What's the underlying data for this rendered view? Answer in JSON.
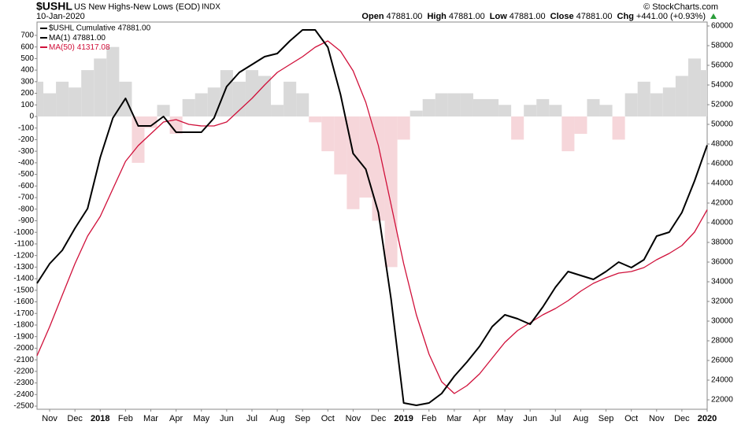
{
  "chart_data": {
    "type": "line",
    "symbol": "$USHL",
    "title": "US New Highs-New Lows (EOD)",
    "exchange": "INDX",
    "date": "10-Jan-2020",
    "quote": [
      {
        "label": "Open",
        "value": "47881.00"
      },
      {
        "label": "High",
        "value": "47881.00"
      },
      {
        "label": "Low",
        "value": "47881.00"
      },
      {
        "label": "Close",
        "value": "47881.00"
      },
      {
        "label": "Chg",
        "value": "+441.00 (+0.93%)"
      }
    ],
    "credit": "© StockCharts.com",
    "legend_heading": "$USHL Cumulative 47881.00",
    "categories": [
      null,
      "Nov",
      null,
      "Dec",
      null,
      "2018",
      null,
      "Feb",
      null,
      "Mar",
      null,
      "Apr",
      null,
      "May",
      null,
      "Jun",
      null,
      "Jul",
      null,
      "Aug",
      null,
      "Sep",
      null,
      "Oct",
      null,
      "Nov",
      null,
      "Dec",
      null,
      "2019",
      null,
      "Feb",
      null,
      "Mar",
      null,
      "Apr",
      null,
      "May",
      null,
      "Jun",
      null,
      "Jul",
      null,
      "Aug",
      null,
      "Sep",
      null,
      "Oct",
      null,
      "Nov",
      null,
      "Dec",
      null,
      "2020"
    ],
    "histogram": {
      "positive_color": "#d9d9d9",
      "negative_color": "#f6d6da",
      "values": [
        300,
        200,
        300,
        250,
        400,
        500,
        600,
        300,
        -400,
        -100,
        100,
        -150,
        150,
        200,
        250,
        400,
        300,
        400,
        350,
        100,
        300,
        200,
        -50,
        -300,
        -500,
        -800,
        -700,
        -900,
        -1300,
        -200,
        50,
        150,
        200,
        200,
        200,
        150,
        150,
        100,
        -200,
        100,
        150,
        100,
        -300,
        -150,
        150,
        100,
        -200,
        200,
        300,
        200,
        250,
        350,
        500,
        400
      ]
    },
    "series": [
      {
        "name": "MA(1)",
        "legend_value": "47881.00",
        "color": "#000000",
        "axis": "y2",
        "values": [
          33840,
          35840,
          37200,
          39440,
          41440,
          46640,
          50640,
          52640,
          49840,
          49840,
          50800,
          49200,
          49200,
          49200,
          50640,
          53840,
          55280,
          56080,
          56880,
          57200,
          58480,
          59600,
          59600,
          57840,
          53040,
          47040,
          45440,
          41040,
          32240,
          21680,
          21440,
          21680,
          22640,
          24400,
          25840,
          27440,
          29440,
          30640,
          30240,
          29680,
          31440,
          33440,
          35040,
          34640,
          34240,
          35040,
          36000,
          35440,
          36240,
          38640,
          39040,
          41040,
          44240,
          47881
        ]
      },
      {
        "name": "MA(50)",
        "legend_value": "41317.08",
        "color": "#d0103a",
        "axis": "y2",
        "values": [
          26480,
          29440,
          32640,
          35840,
          38640,
          40640,
          43440,
          46240,
          47840,
          49040,
          50240,
          50480,
          50000,
          49840,
          49840,
          50240,
          51440,
          52640,
          54000,
          55280,
          56080,
          56880,
          57840,
          58480,
          57440,
          55440,
          52240,
          47840,
          41840,
          35840,
          30640,
          26640,
          23840,
          22640,
          23440,
          24640,
          26240,
          27840,
          29040,
          29840,
          30640,
          31280,
          32080,
          33040,
          33840,
          34400,
          34880,
          35040,
          35440,
          36240,
          36880,
          37680,
          39040,
          41317
        ]
      }
    ],
    "ylim": [
      -2527,
      815
    ],
    "yticks": [
      700,
      600,
      500,
      400,
      300,
      200,
      100,
      0,
      -100,
      -200,
      -300,
      -400,
      -500,
      -600,
      -700,
      -800,
      -900,
      -1000,
      -1100,
      -1200,
      -1300,
      -1400,
      -1500,
      -1600,
      -1700,
      -1800,
      -1900,
      -2000,
      -2100,
      -2200,
      -2300,
      -2400,
      -2500
    ],
    "y2lim": [
      21040,
      60400
    ],
    "y2ticks": [
      22000,
      24000,
      26000,
      28000,
      30000,
      32000,
      34000,
      36000,
      38000,
      40000,
      42000,
      44000,
      46000,
      48000,
      50000,
      52000,
      54000,
      56000,
      58000,
      60000
    ],
    "grid": false
  }
}
